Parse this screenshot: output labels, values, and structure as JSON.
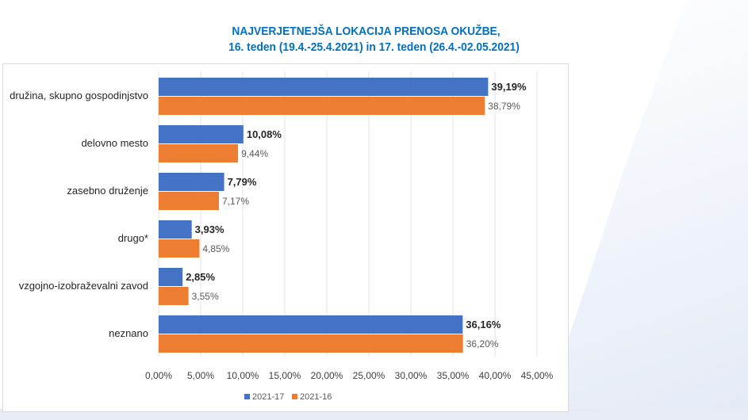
{
  "chart_data": {
    "type": "bar",
    "orientation": "horizontal",
    "title": [
      "NAJVERJETNEJŠA LOKACIJA PRENOSA OKUŽBE,",
      "16. teden (19.4.-25.4.2021) in 17. teden (26.4.-02.05.2021)"
    ],
    "categories": [
      "družina, skupno gospodinjstvo",
      "delovno mesto",
      "zasebno druženje",
      "drugo*",
      "vzgojno-izobraževalni zavod",
      "neznano"
    ],
    "series": [
      {
        "name": "2021-17",
        "color": "#4472c4",
        "values": [
          39.19,
          10.08,
          7.79,
          3.93,
          2.85,
          36.16
        ],
        "labels": [
          "39,19%",
          "10,08%",
          "7,79%",
          "3,93%",
          "2,85%",
          "36,16%"
        ]
      },
      {
        "name": "2021-16",
        "color": "#ed7d31",
        "values": [
          38.79,
          9.44,
          7.17,
          4.85,
          3.55,
          36.2
        ],
        "labels": [
          "38,79%",
          "9,44%",
          "7,17%",
          "4,85%",
          "3,55%",
          "36,20%"
        ]
      }
    ],
    "xlim": [
      0,
      45
    ],
    "xticks": [
      "0,00%",
      "5,00%",
      "10,00%",
      "15,00%",
      "20,00%",
      "25,00%",
      "30,00%",
      "35,00%",
      "40,00%",
      "45,00%"
    ],
    "grid": true,
    "legend": "bottom"
  }
}
